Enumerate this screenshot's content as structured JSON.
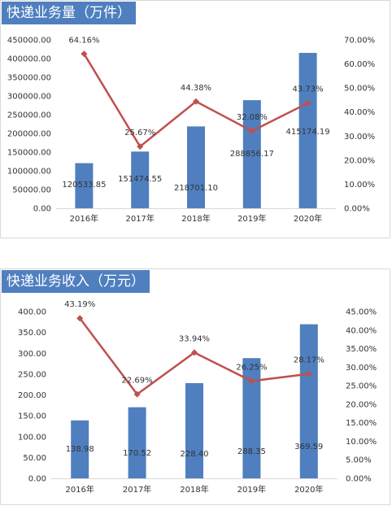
{
  "chart_data": [
    {
      "type": "bar",
      "title": "快递业务量（万件）",
      "categories": [
        "2016年",
        "2017年",
        "2018年",
        "2019年",
        "2020年"
      ],
      "series": [
        {
          "type": "bar",
          "values": [
            120533.85,
            151474.55,
            218701.1,
            288856.17,
            415174.19
          ],
          "labels": [
            "120533.85",
            "151474.55",
            "218701.10",
            "288856.17",
            "415174.19"
          ],
          "color": "#4f7fbf",
          "axis": "left"
        },
        {
          "type": "line",
          "values": [
            64.16,
            25.67,
            44.38,
            32.08,
            43.73
          ],
          "labels": [
            "64.16%",
            "25.67%",
            "44.38%",
            "32.08%",
            "43.73%"
          ],
          "color": "#c0504d",
          "axis": "right"
        }
      ],
      "y_left": {
        "min": 0,
        "max": 450000,
        "step": 50000,
        "ticks": [
          "0.00",
          "50000.00",
          "100000.00",
          "150000.00",
          "200000.00",
          "250000.00",
          "300000.00",
          "350000.00",
          "400000.00",
          "450000.00"
        ]
      },
      "y_right": {
        "min": 0,
        "max": 70,
        "step": 10,
        "ticks": [
          "0.00%",
          "10.00%",
          "20.00%",
          "30.00%",
          "40.00%",
          "50.00%",
          "60.00%",
          "70.00%"
        ]
      },
      "grid": false,
      "legend": "none"
    },
    {
      "type": "bar",
      "title": "快递业务收入（万元）",
      "categories": [
        "2016年",
        "2017年",
        "2018年",
        "2019年",
        "2020年"
      ],
      "series": [
        {
          "type": "bar",
          "values": [
            138.98,
            170.52,
            228.4,
            288.35,
            369.59
          ],
          "labels": [
            "138.98",
            "170.52",
            "228.40",
            "288.35",
            "369.59"
          ],
          "color": "#4f7fbf",
          "axis": "left"
        },
        {
          "type": "line",
          "values": [
            43.19,
            22.69,
            33.94,
            26.25,
            28.17
          ],
          "labels": [
            "43.19%",
            "22.69%",
            "33.94%",
            "26.25%",
            "28.17%"
          ],
          "color": "#c0504d",
          "axis": "right"
        }
      ],
      "y_left": {
        "min": 0,
        "max": 400,
        "step": 50,
        "ticks": [
          "0.00",
          "50.00",
          "100.00",
          "150.00",
          "200.00",
          "250.00",
          "300.00",
          "350.00",
          "400.00"
        ]
      },
      "y_right": {
        "min": 0,
        "max": 45,
        "step": 5,
        "ticks": [
          "0.00%",
          "5.00%",
          "10.00%",
          "15.00%",
          "20.00%",
          "25.00%",
          "30.00%",
          "35.00%",
          "40.00%",
          "45.00%"
        ]
      },
      "grid": false,
      "legend": "none"
    }
  ]
}
